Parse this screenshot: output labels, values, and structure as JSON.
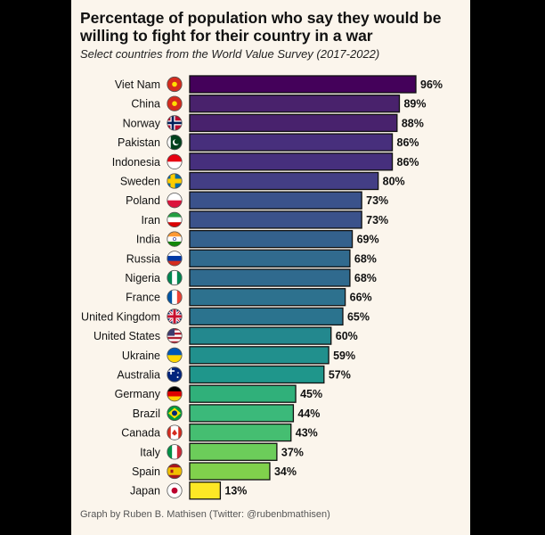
{
  "title": "Percentage of population who say they would be willing to fight for their country in a war",
  "subtitle": "Select countries from the World Value Survey (2017-2022)",
  "footer": "Graph by Ruben B. Mathisen (Twitter: @rubenbmathisen)",
  "chart_data": {
    "type": "bar",
    "orientation": "horizontal",
    "categories": [
      "Viet Nam",
      "China",
      "Norway",
      "Pakistan",
      "Indonesia",
      "Sweden",
      "Poland",
      "Iran",
      "India",
      "Russia",
      "Nigeria",
      "France",
      "United Kingdom",
      "United States",
      "Ukraine",
      "Australia",
      "Germany",
      "Brazil",
      "Canada",
      "Italy",
      "Spain",
      "Japan"
    ],
    "values": [
      96,
      89,
      88,
      86,
      86,
      80,
      73,
      73,
      69,
      68,
      68,
      66,
      65,
      60,
      59,
      57,
      45,
      44,
      43,
      37,
      34,
      13
    ],
    "value_labels": [
      "96%",
      "89%",
      "88%",
      "86%",
      "86%",
      "80%",
      "73%",
      "73%",
      "69%",
      "68%",
      "68%",
      "66%",
      "65%",
      "60%",
      "59%",
      "57%",
      "45%",
      "44%",
      "43%",
      "37%",
      "34%",
      "13%"
    ],
    "flag_icons": [
      "vietnam-flag-icon",
      "china-flag-icon",
      "norway-flag-icon",
      "pakistan-flag-icon",
      "indonesia-flag-icon",
      "sweden-flag-icon",
      "poland-flag-icon",
      "iran-flag-icon",
      "india-flag-icon",
      "russia-flag-icon",
      "nigeria-flag-icon",
      "france-flag-icon",
      "uk-flag-icon",
      "usa-flag-icon",
      "ukraine-flag-icon",
      "australia-flag-icon",
      "germany-flag-icon",
      "brazil-flag-icon",
      "canada-flag-icon",
      "italy-flag-icon",
      "spain-flag-icon",
      "japan-flag-icon"
    ],
    "colors": [
      "#44015a",
      "#49226c",
      "#48226d",
      "#472f7c",
      "#462f7d",
      "#433e85",
      "#3a528b",
      "#3b528b",
      "#34618d",
      "#316a8e",
      "#306a8e",
      "#2d718e",
      "#2b738e",
      "#23888e",
      "#21908d",
      "#1f968b",
      "#30b07a",
      "#3bb97a",
      "#45be71",
      "#6ccd5a",
      "#80d14c",
      "#fde725"
    ],
    "xlim": [
      0,
      100
    ],
    "grid": false,
    "legend": "none"
  }
}
